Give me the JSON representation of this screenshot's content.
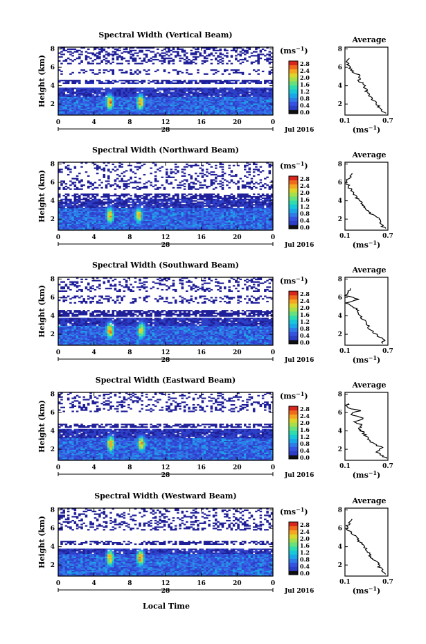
{
  "figure": {
    "bottom_label": "Local Time"
  },
  "colors": {
    "colormap": [
      "#1f1f99",
      "#2c3fc7",
      "#3553e0",
      "#2f7be8",
      "#1aa7e8",
      "#18c7d8",
      "#2fdcae",
      "#67e07d",
      "#a6df4c",
      "#dcd62c",
      "#f4a521",
      "#f06a1c",
      "#d9261c"
    ],
    "line": "#000000"
  },
  "chart_data": [
    {
      "type": "heatmap",
      "beam": "vertical",
      "title": "Spectral Width (Vertical Beam)",
      "ylabel": "Height (km)",
      "x_ticks": [
        "0",
        "4",
        "8",
        "12",
        "16",
        "20",
        "0"
      ],
      "x_date_label": "28",
      "x_month_label": "Jul 2016",
      "xlim": [
        0,
        24
      ],
      "y_ticks": [
        "2",
        "4",
        "6",
        "8"
      ],
      "ylim": [
        0.8,
        8.2
      ],
      "colorbar": {
        "unit": "(ms",
        "unit_exp": "−1",
        "unit_close": ")",
        "labels": [
          "2.8",
          "2.4",
          "2.0",
          "1.6",
          "1.2",
          "0.8",
          "0.4",
          "0.0"
        ],
        "range": [
          0,
          2.8
        ]
      },
      "average": {
        "title": "Average",
        "xlim": [
          0.1,
          0.7
        ],
        "x_ticks": [
          "0.1",
          "0.7"
        ],
        "xlabel": "(ms",
        "xlabel_exp": "−1",
        "xlabel_close": ")",
        "y_ticks": [
          "2",
          "4",
          "6",
          "8"
        ],
        "profile_height": [
          1.0,
          1.4,
          1.8,
          2.2,
          2.6,
          3.0,
          3.4,
          3.8,
          4.2,
          4.6,
          5.0,
          5.4,
          5.8,
          6.2,
          6.6,
          7.0
        ],
        "profile_width": [
          0.66,
          0.62,
          0.56,
          0.54,
          0.48,
          0.44,
          0.4,
          0.38,
          0.34,
          0.3,
          0.32,
          0.24,
          0.18,
          0.14,
          0.12,
          0.16
        ]
      },
      "layers": [
        {
          "y0": 0.8,
          "y1": 2.8,
          "level": 0.55,
          "density": 1.0
        },
        {
          "y0": 2.8,
          "y1": 3.8,
          "level": 0.25,
          "density": 0.95
        },
        {
          "y0": 4.2,
          "y1": 4.6,
          "level": 0.15,
          "density": 0.7
        },
        {
          "y0": 5.2,
          "y1": 5.8,
          "level": 0.1,
          "density": 0.25
        },
        {
          "y0": 6.4,
          "y1": 8.2,
          "level": 0.08,
          "density": 0.35
        }
      ],
      "hotspots": [
        {
          "t": 5.8,
          "h": 2.2,
          "v": 2.6
        },
        {
          "t": 9.2,
          "h": 2.2,
          "v": 2.5
        }
      ]
    },
    {
      "type": "heatmap",
      "beam": "northward",
      "title": "Spectral Width (Northward Beam)",
      "ylabel": "Height (km)",
      "x_ticks": [
        "0",
        "4",
        "8",
        "12",
        "16",
        "20",
        "0"
      ],
      "x_date_label": "28",
      "x_month_label": "Jul 2016",
      "xlim": [
        0,
        24
      ],
      "y_ticks": [
        "2",
        "4",
        "6",
        "8"
      ],
      "ylim": [
        0.8,
        8.2
      ],
      "colorbar": {
        "unit": "(ms",
        "unit_exp": "−1",
        "unit_close": ")",
        "labels": [
          "2.8",
          "2.4",
          "2.0",
          "1.6",
          "1.2",
          "0.8",
          "0.4",
          "0.0"
        ],
        "range": [
          0,
          2.8
        ]
      },
      "average": {
        "title": "Average",
        "xlim": [
          0.1,
          0.7
        ],
        "x_ticks": [
          "0.1",
          "0.7"
        ],
        "xlabel": "(ms",
        "xlabel_exp": "−1",
        "xlabel_close": ")",
        "y_ticks": [
          "2",
          "4",
          "6",
          "8"
        ],
        "profile_height": [
          1.0,
          1.4,
          1.8,
          2.2,
          2.6,
          3.0,
          3.4,
          3.8,
          4.2,
          4.6,
          5.0,
          5.4,
          5.8,
          6.2,
          6.6,
          7.0
        ],
        "profile_width": [
          0.66,
          0.6,
          0.62,
          0.55,
          0.46,
          0.42,
          0.36,
          0.32,
          0.28,
          0.24,
          0.22,
          0.16,
          0.14,
          0.12,
          0.18,
          0.2
        ]
      },
      "layers": [
        {
          "y0": 0.8,
          "y1": 3.2,
          "level": 0.55,
          "density": 1.0
        },
        {
          "y0": 3.2,
          "y1": 4.2,
          "level": 0.2,
          "density": 0.9
        },
        {
          "y0": 4.2,
          "y1": 4.8,
          "level": 0.12,
          "density": 0.6
        },
        {
          "y0": 5.2,
          "y1": 6.0,
          "level": 0.08,
          "density": 0.3
        },
        {
          "y0": 6.0,
          "y1": 8.2,
          "level": 0.08,
          "density": 0.2
        }
      ],
      "hotspots": [
        {
          "t": 5.8,
          "h": 2.4,
          "v": 2.4
        },
        {
          "t": 9.0,
          "h": 2.4,
          "v": 2.3
        }
      ]
    },
    {
      "type": "heatmap",
      "beam": "southward",
      "title": "Spectral Width (Southward Beam)",
      "ylabel": "Height (km)",
      "x_ticks": [
        "0",
        "4",
        "8",
        "12",
        "16",
        "20",
        "0"
      ],
      "x_date_label": "28",
      "x_month_label": "Jul 2016",
      "xlim": [
        0,
        24
      ],
      "y_ticks": [
        "2",
        "4",
        "6",
        "8"
      ],
      "ylim": [
        0.8,
        8.2
      ],
      "colorbar": {
        "unit": "(ms",
        "unit_exp": "−1",
        "unit_close": ")",
        "labels": [
          "2.8",
          "2.4",
          "2.0",
          "1.6",
          "1.2",
          "0.8",
          "0.4",
          "0.0"
        ],
        "range": [
          0,
          2.8
        ]
      },
      "average": {
        "title": "Average",
        "xlim": [
          0.1,
          0.7
        ],
        "x_ticks": [
          "0.1",
          "0.7"
        ],
        "xlabel": "(ms",
        "xlabel_exp": "−1",
        "xlabel_close": ")",
        "y_ticks": [
          "2",
          "4",
          "6",
          "8"
        ],
        "profile_height": [
          1.0,
          1.4,
          1.8,
          2.2,
          2.6,
          3.0,
          3.4,
          3.8,
          4.2,
          4.6,
          5.0,
          5.4,
          5.8,
          6.2,
          6.6,
          7.0
        ],
        "profile_width": [
          0.62,
          0.66,
          0.56,
          0.5,
          0.44,
          0.42,
          0.38,
          0.34,
          0.3,
          0.28,
          0.22,
          0.12,
          0.3,
          0.1,
          0.14,
          0.18
        ]
      },
      "layers": [
        {
          "y0": 0.8,
          "y1": 3.0,
          "level": 0.55,
          "density": 1.0
        },
        {
          "y0": 3.0,
          "y1": 3.8,
          "level": 0.22,
          "density": 0.95
        },
        {
          "y0": 4.0,
          "y1": 4.6,
          "level": 0.12,
          "density": 0.7
        },
        {
          "y0": 5.4,
          "y1": 6.2,
          "level": 0.08,
          "density": 0.25
        },
        {
          "y0": 6.6,
          "y1": 8.2,
          "level": 0.08,
          "density": 0.25
        }
      ],
      "hotspots": [
        {
          "t": 5.8,
          "h": 2.4,
          "v": 2.6
        },
        {
          "t": 9.3,
          "h": 2.4,
          "v": 2.4
        }
      ]
    },
    {
      "type": "heatmap",
      "beam": "eastward",
      "title": "Spectral Width (Eastward Beam)",
      "ylabel": "Height (km)",
      "x_ticks": [
        "0",
        "4",
        "8",
        "12",
        "16",
        "20",
        "0"
      ],
      "x_date_label": "28",
      "x_month_label": "Jul 2016",
      "xlim": [
        0,
        24
      ],
      "y_ticks": [
        "2",
        "4",
        "6",
        "8"
      ],
      "ylim": [
        0.8,
        8.2
      ],
      "colorbar": {
        "unit": "(ms",
        "unit_exp": "−1",
        "unit_close": ")",
        "labels": [
          "2.8",
          "2.4",
          "2.0",
          "1.6",
          "1.2",
          "0.8",
          "0.4",
          "0.0"
        ],
        "range": [
          0,
          2.8
        ]
      },
      "average": {
        "title": "Average",
        "xlim": [
          0.1,
          0.7
        ],
        "x_ticks": [
          "0.1",
          "0.7"
        ],
        "xlabel": "(ms",
        "xlabel_exp": "−1",
        "xlabel_close": ")",
        "y_ticks": [
          "2",
          "4",
          "6",
          "8"
        ],
        "profile_height": [
          1.0,
          1.4,
          1.8,
          2.2,
          2.6,
          3.0,
          3.4,
          3.8,
          4.2,
          4.6,
          5.0,
          5.4,
          5.8,
          6.2,
          6.6,
          7.0
        ],
        "profile_width": [
          0.68,
          0.6,
          0.54,
          0.62,
          0.5,
          0.44,
          0.4,
          0.36,
          0.3,
          0.34,
          0.24,
          0.36,
          0.16,
          0.3,
          0.12,
          0.14
        ]
      },
      "layers": [
        {
          "y0": 0.8,
          "y1": 3.2,
          "level": 0.55,
          "density": 1.0
        },
        {
          "y0": 3.2,
          "y1": 4.2,
          "level": 0.22,
          "density": 0.95
        },
        {
          "y0": 4.4,
          "y1": 4.8,
          "level": 0.12,
          "density": 0.6
        },
        {
          "y0": 6.0,
          "y1": 8.2,
          "level": 0.08,
          "density": 0.25
        }
      ],
      "hotspots": [
        {
          "t": 5.9,
          "h": 2.6,
          "v": 2.6
        },
        {
          "t": 9.3,
          "h": 2.6,
          "v": 2.4
        }
      ]
    },
    {
      "type": "heatmap",
      "beam": "westward",
      "title": "Spectral Width (Westward Beam)",
      "ylabel": "Height (km)",
      "x_ticks": [
        "0",
        "4",
        "8",
        "12",
        "16",
        "20",
        "0"
      ],
      "x_date_label": "28",
      "x_month_label": "Jul 2016",
      "xlim": [
        0,
        24
      ],
      "y_ticks": [
        "2",
        "4",
        "6",
        "8"
      ],
      "ylim": [
        0.8,
        8.2
      ],
      "colorbar": {
        "unit": "(ms",
        "unit_exp": "−1",
        "unit_close": ")",
        "labels": [
          "2.8",
          "2.4",
          "2.0",
          "1.6",
          "1.2",
          "0.8",
          "0.4",
          "0.0"
        ],
        "range": [
          0,
          2.8
        ]
      },
      "average": {
        "title": "Average",
        "xlim": [
          0.1,
          0.7
        ],
        "x_ticks": [
          "0.1",
          "0.7"
        ],
        "xlabel": "(ms",
        "xlabel_exp": "−1",
        "xlabel_close": ")",
        "y_ticks": [
          "2",
          "4",
          "6",
          "8"
        ],
        "profile_height": [
          1.0,
          1.4,
          1.8,
          2.2,
          2.6,
          3.0,
          3.4,
          3.8,
          4.2,
          4.6,
          5.0,
          5.4,
          5.8,
          6.2,
          6.6,
          7.0
        ],
        "profile_width": [
          0.66,
          0.62,
          0.58,
          0.56,
          0.5,
          0.46,
          0.42,
          0.38,
          0.36,
          0.3,
          0.26,
          0.2,
          0.14,
          0.12,
          0.16,
          0.2
        ]
      },
      "layers": [
        {
          "y0": 0.8,
          "y1": 3.2,
          "level": 0.55,
          "density": 1.0
        },
        {
          "y0": 3.2,
          "y1": 3.8,
          "level": 0.22,
          "density": 0.9
        },
        {
          "y0": 4.2,
          "y1": 4.6,
          "level": 0.12,
          "density": 0.5
        },
        {
          "y0": 5.8,
          "y1": 6.6,
          "level": 0.08,
          "density": 0.3
        },
        {
          "y0": 6.6,
          "y1": 8.2,
          "level": 0.08,
          "density": 0.25
        }
      ],
      "hotspots": [
        {
          "t": 5.8,
          "h": 2.8,
          "v": 2.5
        },
        {
          "t": 9.2,
          "h": 2.8,
          "v": 2.6
        }
      ]
    }
  ]
}
